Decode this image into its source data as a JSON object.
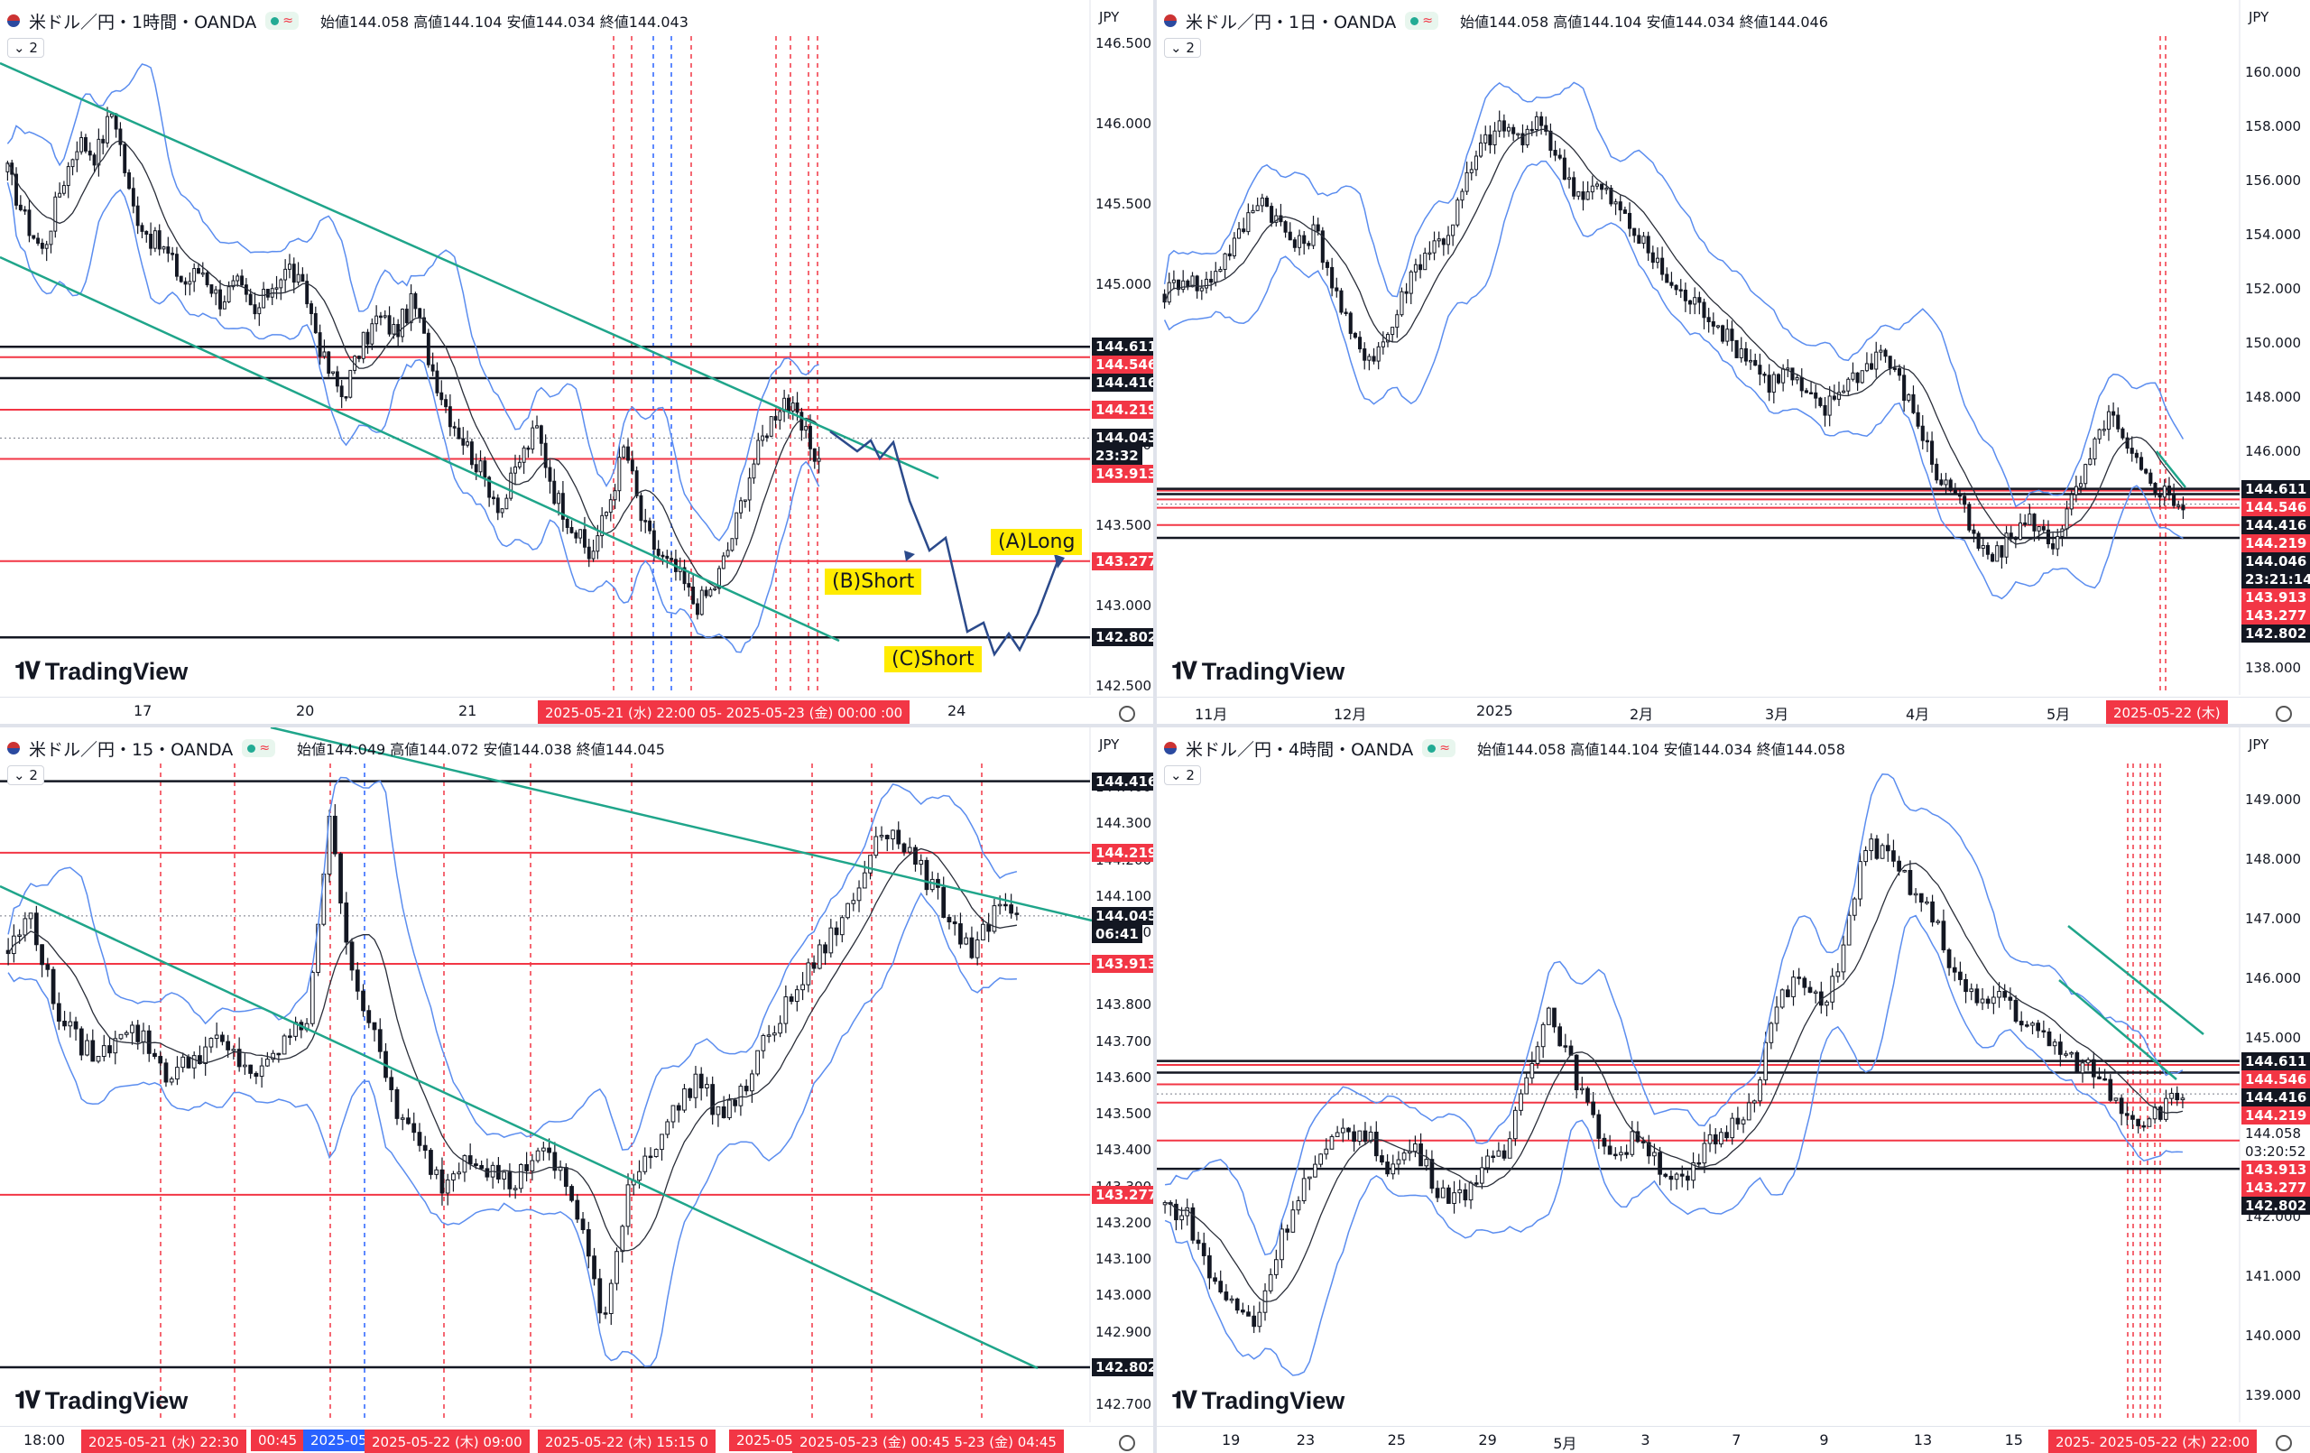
{
  "colors": {
    "bull": "#131722",
    "bear": "#131722",
    "bb_outer": "#5b8def",
    "bb_mid": "#2a2e39",
    "channel": "#1fa58a",
    "red_line": "#f23645",
    "black_line": "#131722",
    "vline_red": "#f23645",
    "vline_blue": "#2962ff",
    "projection": "#2b4a8b"
  },
  "panels": [
    {
      "id": "h1",
      "title": "米ドル／円・1時間・OANDA",
      "ohlc": "始値144.058 高値144.104 安値144.034 終値144.043",
      "collapse": "2",
      "currency": "JPY",
      "logo": "TradingView",
      "yticks": [
        "146.500",
        "146.000",
        "145.500",
        "145.000",
        "144.500",
        "144.000",
        "143.500",
        "143.000",
        "142.500"
      ],
      "xticks": [
        "17",
        "20",
        "21",
        "24"
      ],
      "xsel": "2025-05-21 (水)  22:00  05-  2025-05-23 (金)  00:00  :00",
      "price_tags": [
        {
          "text": "144.611",
          "style": "black"
        },
        {
          "text": "144.546",
          "style": "red"
        },
        {
          "text": "144.416",
          "style": "black"
        },
        {
          "text": "144.219",
          "style": "red"
        },
        {
          "text": "144.043",
          "style": "black"
        },
        {
          "text": "23:32",
          "style": "black"
        },
        {
          "text": "143.913",
          "style": "red"
        },
        {
          "text": "143.277",
          "style": "red"
        },
        {
          "text": "142.802",
          "style": "black"
        }
      ],
      "annotations": [
        "(A)Long",
        "(B)Short",
        "(C)Short"
      ]
    },
    {
      "id": "d1",
      "title": "米ドル／円・1日・OANDA",
      "ohlc": "始値144.058 高値144.104 安値144.034 終値144.046",
      "collapse": "2",
      "currency": "JPY",
      "logo": "TradingView",
      "yticks": [
        "160.000",
        "158.000",
        "156.000",
        "154.000",
        "152.000",
        "150.000",
        "148.000",
        "146.000",
        "144.000",
        "142.000",
        "140.000",
        "138.000"
      ],
      "xticks": [
        "11月",
        "12月",
        "2025",
        "2月",
        "3月",
        "4月",
        "5月"
      ],
      "xsel": "2025-05-22 (木)",
      "price_tags": [
        {
          "text": "144.611",
          "style": "black"
        },
        {
          "text": "144.546",
          "style": "red"
        },
        {
          "text": "144.416",
          "style": "black"
        },
        {
          "text": "144.219",
          "style": "red"
        },
        {
          "text": "144.046",
          "style": "black"
        },
        {
          "text": "23:21:14",
          "style": "black"
        },
        {
          "text": "143.913",
          "style": "red"
        },
        {
          "text": "143.277",
          "style": "red"
        },
        {
          "text": "142.802",
          "style": "black"
        }
      ]
    },
    {
      "id": "m15",
      "title": "米ドル／円・15・OANDA",
      "ohlc": "始値144.049 高値144.072 安値144.038 終値144.045",
      "collapse": "2",
      "currency": "JPY",
      "logo": "TradingView",
      "yticks": [
        "144.400",
        "144.300",
        "144.200",
        "144.100",
        "144.000",
        "143.900",
        "143.800",
        "143.700",
        "143.600",
        "143.500",
        "143.400",
        "143.300",
        "143.200",
        "143.100",
        "143.000",
        "142.900",
        "142.800",
        "142.700"
      ],
      "xticks": [
        "18:00"
      ],
      "xsel_list": [
        "2025-05-21 (水)  22:30",
        "00:45",
        "2025-05-22",
        "2025-05-22 (木)  09:00",
        "2025-05-22 (木)  15:15  0",
        "2025-05-",
        "2025-05-23 (金)  00:45  5-23 (金)  04:45"
      ],
      "price_tags": [
        {
          "text": "144.416",
          "style": "black"
        },
        {
          "text": "144.219",
          "style": "red"
        },
        {
          "text": "144.045",
          "style": "black"
        },
        {
          "text": "06:41",
          "style": "black"
        },
        {
          "text": "143.913",
          "style": "red"
        },
        {
          "text": "143.277",
          "style": "red"
        },
        {
          "text": "142.802",
          "style": "black"
        }
      ]
    },
    {
      "id": "h4",
      "title": "米ドル／円・4時間・OANDA",
      "ohlc": "始値144.058 高値144.104 安値144.034 終値144.058",
      "collapse": "2",
      "currency": "JPY",
      "logo": "TradingView",
      "yticks": [
        "149.000",
        "148.000",
        "147.000",
        "146.000",
        "145.000",
        "144.000",
        "143.000",
        "142.000",
        "141.000",
        "140.000",
        "139.000"
      ],
      "xticks": [
        "19",
        "23",
        "25",
        "29",
        "5月",
        "3",
        "7",
        "9",
        "13",
        "15",
        "17"
      ],
      "xsel": "2025-  2025-05-22 (木)  22:00",
      "price_tags": [
        {
          "text": "144.611",
          "style": "black"
        },
        {
          "text": "144.546",
          "style": "red"
        },
        {
          "text": "144.416",
          "style": "black"
        },
        {
          "text": "144.219",
          "style": "red"
        },
        {
          "text": "144.058",
          "style": "plain"
        },
        {
          "text": "03:20:52",
          "style": "plain"
        },
        {
          "text": "143.913",
          "style": "red"
        },
        {
          "text": "143.277",
          "style": "red"
        },
        {
          "text": "142.802",
          "style": "black"
        }
      ]
    }
  ],
  "chart_data": [
    {
      "type": "candlestick",
      "title": "米ドル／円・1時間・OANDA",
      "ylim": [
        142.5,
        146.5
      ],
      "levels": {
        "black": [
          144.611,
          144.416,
          142.802
        ],
        "red": [
          144.546,
          144.219,
          143.913,
          143.277
        ]
      },
      "last": 144.043,
      "path": [
        145.7,
        145.4,
        145.2,
        145.6,
        145.9,
        145.8,
        146.1,
        145.5,
        145.3,
        145.2,
        145.0,
        145.1,
        144.9,
        145.0,
        144.8,
        145.0,
        145.1,
        144.9,
        144.5,
        144.3,
        144.6,
        144.8,
        144.7,
        144.9,
        144.5,
        144.2,
        144.0,
        143.8,
        143.6,
        143.9,
        144.1,
        143.7,
        143.5,
        143.3,
        143.6,
        144.0,
        143.5,
        143.3,
        143.2,
        143.0,
        143.1,
        143.4,
        143.8,
        144.1,
        144.3,
        144.1,
        143.9
      ]
    },
    {
      "type": "candlestick",
      "title": "米ドル／円・1日・OANDA",
      "ylim": [
        138.0,
        160.0
      ],
      "levels": {
        "black": [
          144.611,
          144.416,
          142.802
        ],
        "red": [
          144.546,
          144.219,
          143.913,
          143.277
        ]
      },
      "last": 144.046,
      "path": [
        151.8,
        152.5,
        152.0,
        153.0,
        154.0,
        155.5,
        154.5,
        153.5,
        154.2,
        152.0,
        150.0,
        149.5,
        150.5,
        152.5,
        153.5,
        154.0,
        156.0,
        157.5,
        158.0,
        157.5,
        158.2,
        156.5,
        155.5,
        155.8,
        155.0,
        154.0,
        153.0,
        152.0,
        151.5,
        151.0,
        150.0,
        149.5,
        148.5,
        149.0,
        148.0,
        147.5,
        148.5,
        149.0,
        149.8,
        148.5,
        147.0,
        145.0,
        144.5,
        142.5,
        142.0,
        143.0,
        143.5,
        142.5,
        144.0,
        145.5,
        147.5,
        146.0,
        145.0,
        144.5,
        144.0
      ]
    },
    {
      "type": "candlestick",
      "title": "米ドル／円・15・OANDA",
      "ylim": [
        142.7,
        144.45
      ],
      "levels": {
        "black": [
          144.416,
          142.802
        ],
        "red": [
          144.219,
          143.913,
          143.277
        ]
      },
      "last": 144.045,
      "path": [
        143.95,
        144.05,
        143.8,
        143.7,
        143.65,
        143.75,
        143.7,
        143.6,
        143.65,
        143.7,
        143.65,
        143.6,
        143.7,
        143.75,
        144.3,
        143.9,
        143.7,
        143.5,
        143.4,
        143.3,
        143.4,
        143.35,
        143.3,
        143.4,
        143.35,
        143.2,
        142.9,
        143.3,
        143.4,
        143.5,
        143.6,
        143.5,
        143.55,
        143.7,
        143.8,
        143.9,
        144.0,
        144.1,
        144.3,
        144.25,
        144.15,
        144.05,
        143.95,
        144.05,
        144.05
      ]
    },
    {
      "type": "candlestick",
      "title": "米ドル／円・4時間・OANDA",
      "ylim": [
        139.0,
        149.0
      ],
      "levels": {
        "black": [
          144.611,
          144.416,
          142.802
        ],
        "red": [
          144.546,
          144.219,
          143.913,
          143.277
        ]
      },
      "last": 144.058,
      "path": [
        142.2,
        142.0,
        141.0,
        140.5,
        140.2,
        141.5,
        142.5,
        143.0,
        143.5,
        143.3,
        142.8,
        143.2,
        142.5,
        142.3,
        142.8,
        143.0,
        144.5,
        145.5,
        144.5,
        143.5,
        143.0,
        143.4,
        142.8,
        142.5,
        143.2,
        143.5,
        144.0,
        145.5,
        146.0,
        145.5,
        146.5,
        148.3,
        148.0,
        147.5,
        147.0,
        146.0,
        145.5,
        145.8,
        145.2,
        145.0,
        144.6,
        144.5,
        144.0,
        143.6,
        143.8,
        144.05
      ]
    }
  ]
}
